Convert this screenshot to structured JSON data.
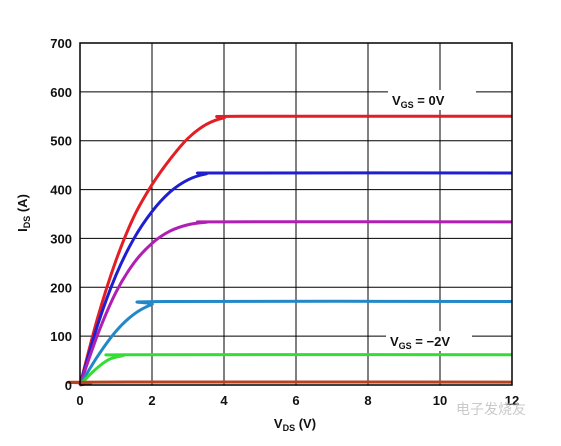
{
  "chart_data": {
    "type": "line",
    "xlabel": {
      "main": "V",
      "sub": "DS",
      "rest": " (V)"
    },
    "ylabel": {
      "main": "I",
      "sub": "DS",
      "rest": " (A)"
    },
    "xlim": [
      0,
      12
    ],
    "ylim": [
      0,
      700
    ],
    "xticks": [
      0,
      2,
      4,
      6,
      8,
      10,
      12
    ],
    "yticks": [
      0,
      100,
      200,
      300,
      400,
      500,
      600,
      700
    ],
    "grid": true,
    "series": [
      {
        "color": "#e31e24",
        "x": [
          0,
          0.5,
          1,
          1.5,
          2,
          2.5,
          3,
          3.5,
          4,
          4.5,
          12
        ],
        "y": [
          0,
          140,
          255,
          345,
          410,
          462,
          505,
          533,
          547,
          550,
          550
        ]
      },
      {
        "color": "#1f1fd0",
        "x": [
          0,
          0.5,
          1,
          1.5,
          2,
          2.5,
          3,
          3.5,
          4,
          12
        ],
        "y": [
          0,
          125,
          225,
          300,
          355,
          395,
          420,
          432,
          434,
          434
        ]
      },
      {
        "color": "#b01eb4",
        "x": [
          0,
          0.5,
          1,
          1.5,
          2,
          2.5,
          3,
          3.5,
          4,
          12
        ],
        "y": [
          0,
          105,
          190,
          250,
          290,
          315,
          328,
          333,
          334,
          334
        ]
      },
      {
        "color": "#2288c8",
        "x": [
          0,
          0.5,
          1,
          1.5,
          2,
          2.4,
          12
        ],
        "y": [
          0,
          60,
          110,
          145,
          165,
          171,
          171
        ]
      },
      {
        "color": "#33dd33",
        "x": [
          0,
          0.4,
          0.8,
          1.2,
          1.6,
          12
        ],
        "y": [
          0,
          30,
          52,
          60,
          62,
          62
        ]
      },
      {
        "color": "#b8421e",
        "x": [
          0,
          0.3,
          0.6,
          12
        ],
        "y": [
          0,
          4,
          6,
          6
        ]
      }
    ],
    "annotations": [
      {
        "main": "V",
        "sub": "GS",
        "rest": " = 0V"
      },
      {
        "main": "V",
        "sub": "GS",
        "rest": " = −2V"
      }
    ]
  },
  "watermark": "电子发烧友"
}
